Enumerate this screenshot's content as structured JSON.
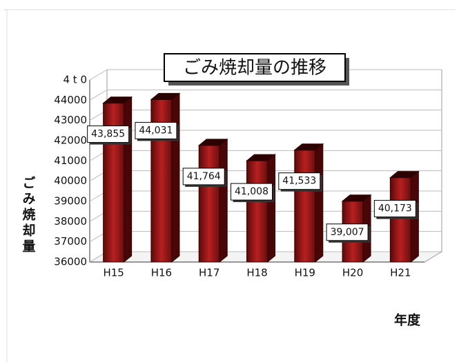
{
  "chart_data": {
    "type": "bar",
    "title": "ごみ焼却量の推移",
    "y_label": "ごみ焼却量",
    "x_label": "年度",
    "categories": [
      "H15",
      "H16",
      "H17",
      "H18",
      "H19",
      "H20",
      "H21"
    ],
    "values": [
      43855,
      44031,
      41764,
      41008,
      41533,
      39007,
      40173
    ],
    "value_labels": [
      "43,855",
      "44,031",
      "41,764",
      "41,008",
      "41,533",
      "39,007",
      "40,173"
    ],
    "color": "#b01818",
    "ylim": [
      36000,
      45000
    ],
    "yticks": [
      36000,
      37000,
      38000,
      39000,
      40000,
      41000,
      42000,
      43000,
      44000,
      {
        "value": 45000,
        "label": "4 t 0"
      }
    ],
    "grid": true
  }
}
